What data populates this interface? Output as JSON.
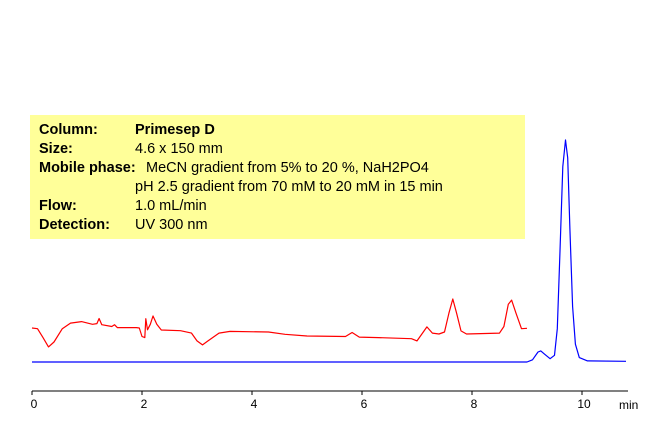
{
  "info_box": {
    "background": "#ffff99",
    "rows": [
      {
        "label": "Column:",
        "value": "Primesep D"
      },
      {
        "label": "Size:",
        "value": "4.6 x 150 mm"
      },
      {
        "label": "Mobile phase:",
        "value": "MeCN gradient from 5% to 20 %, NaH2PO4"
      },
      {
        "label": "",
        "value": "pH 2.5 gradient from 70 mM to 20 mM in 15 min"
      },
      {
        "label": "Flow:",
        "value": "1.0 mL/min"
      },
      {
        "label": "Detection:",
        "value": "UV 300 nm"
      }
    ]
  },
  "chart_data": {
    "type": "line",
    "xlabel": "min",
    "xlim": [
      0,
      10.8
    ],
    "xticks": [
      0,
      2,
      4,
      6,
      8,
      10
    ],
    "ylim": [
      -13,
      102
    ],
    "grid": false,
    "series": [
      {
        "color": "#ff0000",
        "points": [
          [
            0,
            15.3
          ],
          [
            0.1,
            15
          ],
          [
            0.2,
            11
          ],
          [
            0.3,
            6.8
          ],
          [
            0.4,
            9
          ],
          [
            0.55,
            15
          ],
          [
            0.7,
            17.5
          ],
          [
            0.9,
            18.2
          ],
          [
            1.1,
            17
          ],
          [
            1.18,
            17.3
          ],
          [
            1.22,
            19.6
          ],
          [
            1.27,
            16.8
          ],
          [
            1.45,
            16
          ],
          [
            1.5,
            16.8
          ],
          [
            1.55,
            15.5
          ],
          [
            1.9,
            15.5
          ],
          [
            1.95,
            15.3
          ],
          [
            2.0,
            11.5
          ],
          [
            2.05,
            11
          ],
          [
            2.07,
            19.5
          ],
          [
            2.1,
            14.5
          ],
          [
            2.15,
            17
          ],
          [
            2.2,
            20.7
          ],
          [
            2.27,
            17
          ],
          [
            2.35,
            14.4
          ],
          [
            2.7,
            14.1
          ],
          [
            2.9,
            13
          ],
          [
            3.0,
            9.5
          ],
          [
            3.1,
            7.7
          ],
          [
            3.2,
            9.5
          ],
          [
            3.4,
            13
          ],
          [
            3.6,
            13.8
          ],
          [
            4.3,
            13.5
          ],
          [
            4.6,
            12.5
          ],
          [
            5.0,
            11.7
          ],
          [
            5.7,
            11.5
          ],
          [
            5.82,
            13.3
          ],
          [
            5.95,
            11.2
          ],
          [
            6.3,
            11
          ],
          [
            6.9,
            10.5
          ],
          [
            7.0,
            9.5
          ],
          [
            7.1,
            13
          ],
          [
            7.18,
            15.8
          ],
          [
            7.28,
            13
          ],
          [
            7.4,
            12.6
          ],
          [
            7.5,
            13.5
          ],
          [
            7.58,
            22
          ],
          [
            7.65,
            28.4
          ],
          [
            7.72,
            22
          ],
          [
            7.8,
            14
          ],
          [
            7.9,
            12.6
          ],
          [
            8.5,
            13
          ],
          [
            8.58,
            16
          ],
          [
            8.66,
            26
          ],
          [
            8.72,
            27.9
          ],
          [
            8.8,
            22
          ],
          [
            8.9,
            15
          ],
          [
            9.0,
            15.2
          ]
        ]
      },
      {
        "color": "#0000ff",
        "points": [
          [
            0,
            0
          ],
          [
            9.0,
            0
          ],
          [
            9.1,
            1
          ],
          [
            9.2,
            4.5
          ],
          [
            9.25,
            5
          ],
          [
            9.32,
            3.5
          ],
          [
            9.42,
            1.5
          ],
          [
            9.5,
            3
          ],
          [
            9.55,
            15
          ],
          [
            9.6,
            50
          ],
          [
            9.65,
            88
          ],
          [
            9.7,
            100
          ],
          [
            9.74,
            92
          ],
          [
            9.78,
            60
          ],
          [
            9.83,
            25
          ],
          [
            9.88,
            8
          ],
          [
            9.95,
            2
          ],
          [
            10.1,
            0.5
          ],
          [
            10.8,
            0.3
          ]
        ]
      }
    ]
  }
}
